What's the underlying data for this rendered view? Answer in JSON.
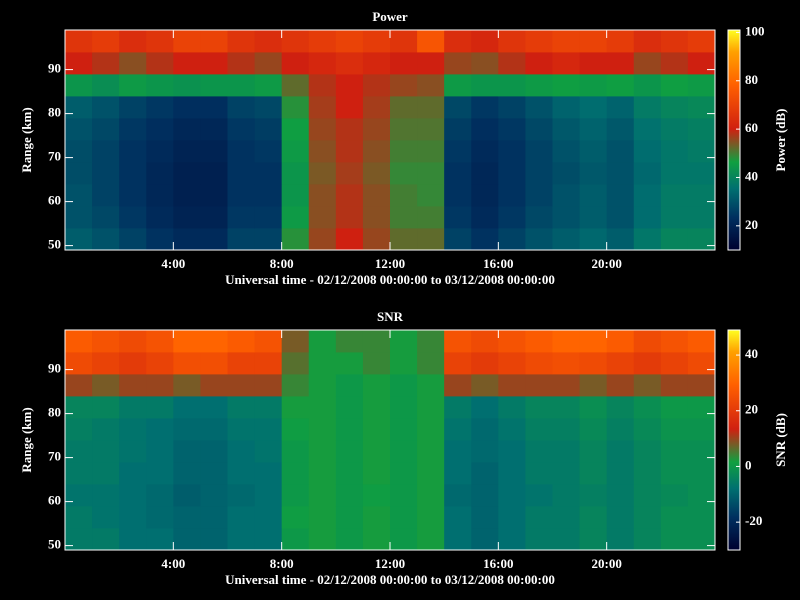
{
  "chart_data": [
    {
      "type": "heatmap",
      "title": "Power",
      "xlabel": "Universal time - 02/12/2008 00:00:00 to 03/12/2008 00:00:00",
      "ylabel": "Range (km)",
      "zlabel": "Power (dB)",
      "xbins": [
        0,
        1,
        2,
        3,
        4,
        5,
        6,
        7,
        8,
        9,
        10,
        11,
        12,
        13,
        14,
        15,
        16,
        17,
        18,
        19,
        20,
        21,
        22,
        23,
        24
      ],
      "ybins": [
        49,
        54,
        59,
        64,
        69,
        74,
        79,
        84,
        89,
        94,
        99
      ],
      "xlim": [
        0,
        24
      ],
      "ylim": [
        49,
        99
      ],
      "zlim": [
        10,
        101
      ],
      "xticks": [
        {
          "value": 4,
          "label": "4:00"
        },
        {
          "value": 8,
          "label": "8:00"
        },
        {
          "value": 12,
          "label": "12:00"
        },
        {
          "value": 16,
          "label": "16:00"
        },
        {
          "value": 20,
          "label": "20:00"
        }
      ],
      "yticks": [
        50,
        60,
        70,
        80,
        90
      ],
      "zticks": [
        20,
        40,
        60,
        80,
        100
      ],
      "values": [
        [
          32,
          30,
          27,
          24,
          22,
          22,
          27,
          27,
          48,
          56,
          60,
          56,
          52,
          52,
          27,
          24,
          27,
          30,
          32,
          34,
          32,
          37,
          40,
          40
        ],
        [
          30,
          28,
          25,
          22,
          20,
          20,
          25,
          25,
          45,
          55,
          58,
          55,
          50,
          50,
          25,
          22,
          25,
          28,
          30,
          32,
          30,
          35,
          38,
          38
        ],
        [
          30,
          27,
          24,
          21,
          19,
          19,
          24,
          24,
          44,
          55,
          58,
          55,
          50,
          49,
          24,
          21,
          24,
          27,
          30,
          32,
          30,
          35,
          38,
          38
        ],
        [
          29,
          27,
          24,
          21,
          19,
          19,
          24,
          24,
          44,
          54,
          57,
          54,
          49,
          49,
          24,
          21,
          24,
          27,
          29,
          31,
          30,
          34,
          37,
          37
        ],
        [
          29,
          27,
          24,
          22,
          20,
          20,
          24,
          25,
          45,
          55,
          58,
          55,
          50,
          50,
          25,
          22,
          24,
          27,
          30,
          32,
          30,
          35,
          37,
          38
        ],
        [
          30,
          28,
          25,
          23,
          21,
          21,
          25,
          26,
          46,
          56,
          58,
          56,
          51,
          51,
          26,
          23,
          25,
          28,
          31,
          33,
          31,
          36,
          38,
          39
        ],
        [
          32,
          30,
          27,
          25,
          23,
          23,
          27,
          28,
          48,
          57,
          60,
          57,
          52,
          52,
          28,
          25,
          27,
          30,
          33,
          35,
          33,
          38,
          40,
          41
        ],
        [
          44,
          42,
          45,
          44,
          43,
          44,
          44,
          45,
          52,
          58,
          60,
          58,
          56,
          55,
          45,
          44,
          44,
          45,
          46,
          45,
          46,
          44,
          46,
          45
        ],
        [
          60,
          58,
          55,
          58,
          60,
          60,
          58,
          56,
          60,
          62,
          64,
          62,
          60,
          60,
          56,
          55,
          58,
          60,
          62,
          60,
          60,
          56,
          58,
          60
        ],
        [
          66,
          68,
          64,
          66,
          70,
          70,
          66,
          64,
          66,
          68,
          70,
          68,
          66,
          75,
          64,
          62,
          66,
          68,
          70,
          70,
          68,
          64,
          66,
          68
        ]
      ]
    },
    {
      "type": "heatmap",
      "title": "SNR",
      "xlabel": "Universal time - 02/12/2008 00:00:00 to 03/12/2008 00:00:00",
      "ylabel": "Range (km)",
      "zlabel": "SNR (dB)",
      "xbins": [
        0,
        1,
        2,
        3,
        4,
        5,
        6,
        7,
        8,
        9,
        10,
        11,
        12,
        13,
        14,
        15,
        16,
        17,
        18,
        19,
        20,
        21,
        22,
        23,
        24
      ],
      "ybins": [
        49,
        54,
        59,
        64,
        69,
        74,
        79,
        84,
        89,
        94,
        99
      ],
      "xlim": [
        0,
        24
      ],
      "ylim": [
        49,
        99
      ],
      "zlim": [
        -30,
        49
      ],
      "xticks": [
        {
          "value": 4,
          "label": "4:00"
        },
        {
          "value": 8,
          "label": "8:00"
        },
        {
          "value": 12,
          "label": "12:00"
        },
        {
          "value": 16,
          "label": "16:00"
        },
        {
          "value": 20,
          "label": "20:00"
        }
      ],
      "yticks": [
        50,
        60,
        70,
        80,
        90
      ],
      "zticks": [
        -20,
        0,
        20,
        40
      ],
      "values": [
        [
          -6,
          -6,
          -8,
          -8,
          -10,
          -10,
          -8,
          -8,
          0,
          2,
          0,
          2,
          0,
          2,
          -8,
          -10,
          -8,
          -6,
          -6,
          -4,
          -6,
          -4,
          -2,
          -2
        ],
        [
          -6,
          -7,
          -8,
          -9,
          -10,
          -10,
          -8,
          -8,
          1,
          2,
          0,
          2,
          0,
          2,
          -8,
          -10,
          -8,
          -6,
          -6,
          -4,
          -6,
          -4,
          -2,
          -2
        ],
        [
          -7,
          -7,
          -8,
          -9,
          -11,
          -10,
          -9,
          -8,
          0,
          2,
          0,
          1,
          0,
          2,
          -9,
          -10,
          -8,
          -7,
          -6,
          -5,
          -6,
          -4,
          -3,
          -2
        ],
        [
          -6,
          -6,
          -8,
          -8,
          -10,
          -10,
          -8,
          -8,
          0,
          2,
          0,
          2,
          0,
          2,
          -8,
          -10,
          -8,
          -6,
          -6,
          -4,
          -6,
          -4,
          -2,
          -2
        ],
        [
          -6,
          -6,
          -7,
          -8,
          -10,
          -10,
          -8,
          -7,
          0,
          2,
          0,
          2,
          0,
          2,
          -8,
          -9,
          -8,
          -6,
          -6,
          -4,
          -6,
          -4,
          -2,
          -2
        ],
        [
          -5,
          -6,
          -7,
          -8,
          -9,
          -9,
          -7,
          -7,
          1,
          2,
          0,
          2,
          0,
          2,
          -7,
          -9,
          -7,
          -5,
          -5,
          -3,
          -5,
          -3,
          -1,
          -1
        ],
        [
          -4,
          -4,
          -6,
          -6,
          -8,
          -8,
          -6,
          -6,
          2,
          2,
          0,
          2,
          0,
          2,
          -6,
          -8,
          -6,
          -4,
          -4,
          -2,
          -4,
          -2,
          0,
          0
        ],
        [
          10,
          8,
          10,
          10,
          8,
          10,
          10,
          10,
          4,
          2,
          0,
          2,
          0,
          2,
          10,
          8,
          10,
          10,
          10,
          8,
          10,
          8,
          10,
          10
        ],
        [
          24,
          22,
          20,
          22,
          25,
          25,
          22,
          22,
          6,
          2,
          2,
          4,
          2,
          4,
          22,
          20,
          22,
          24,
          25,
          24,
          22,
          20,
          22,
          24
        ],
        [
          28,
          26,
          24,
          26,
          30,
          30,
          28,
          26,
          8,
          2,
          4,
          4,
          2,
          4,
          26,
          24,
          26,
          28,
          30,
          30,
          28,
          24,
          26,
          28
        ]
      ]
    }
  ]
}
